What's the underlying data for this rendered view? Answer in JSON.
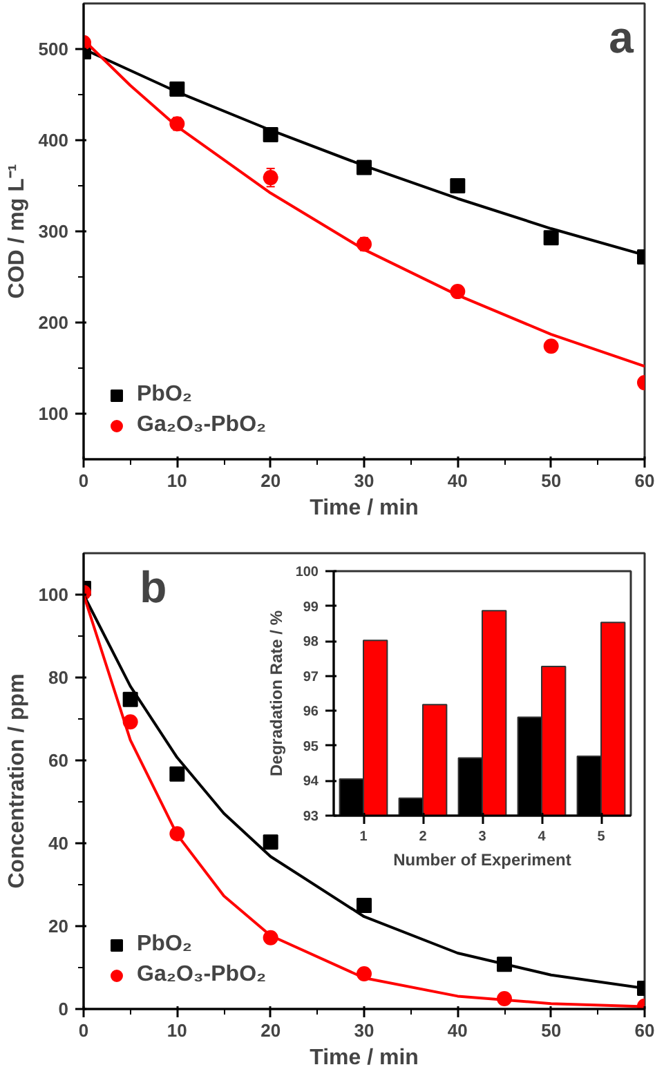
{
  "chart_data": [
    {
      "type": "scatter",
      "xlabel": "Time / min",
      "ylabel": "COD / mg L⁻¹",
      "annotations": [
        "a"
      ],
      "xlim": [
        0,
        60
      ],
      "xticks": [
        0,
        10,
        20,
        30,
        40,
        50,
        60
      ],
      "ylim": [
        50,
        550
      ],
      "yticks": [
        100,
        200,
        300,
        400,
        500
      ],
      "legend": "bottom left",
      "series": [
        {
          "name": "PbO₂",
          "color": "#000000",
          "marker": "square",
          "x": [
            0,
            10,
            20,
            30,
            40,
            50,
            60
          ],
          "values": [
            497,
            456,
            406,
            370,
            350,
            293,
            272
          ]
        },
        {
          "name": "Ga₂O₃-PbO₂",
          "color": "#ff0000",
          "marker": "circle",
          "x": [
            0,
            10,
            20,
            30,
            40,
            50,
            60
          ],
          "values": [
            507,
            418,
            359,
            286,
            234,
            174,
            134
          ],
          "errors": [
            6,
            7,
            10,
            7,
            5,
            6,
            4
          ]
        },
        {
          "type": "line",
          "color": "#000000",
          "x": [
            0,
            10,
            20,
            30,
            40,
            50,
            60
          ],
          "values": [
            500,
            453,
            411,
            372,
            336,
            303,
            274
          ]
        },
        {
          "type": "line",
          "color": "#ff0000",
          "x": [
            0,
            5,
            10,
            20,
            30,
            40,
            50,
            60
          ],
          "values": [
            510,
            460,
            415,
            342,
            280,
            230,
            187,
            152
          ]
        }
      ]
    },
    {
      "type": "scatter",
      "xlabel": "Time / min",
      "ylabel": "Concentration / ppm",
      "annotations": [
        "b"
      ],
      "xlim": [
        0,
        60
      ],
      "xticks": [
        0,
        10,
        20,
        30,
        40,
        50,
        60
      ],
      "ylim": [
        0,
        110
      ],
      "yticks": [
        0,
        20,
        40,
        60,
        80,
        100
      ],
      "legend": "bottom left",
      "series": [
        {
          "name": "PbO₂",
          "color": "#000000",
          "marker": "square",
          "x": [
            0,
            5,
            10,
            20,
            30,
            45,
            60
          ],
          "values": [
            101.5,
            74.7,
            56.7,
            40.3,
            25,
            10.8,
            5
          ]
        },
        {
          "name": "Ga₂O₃-PbO₂",
          "color": "#ff0000",
          "marker": "circle",
          "x": [
            0,
            5,
            10,
            20,
            30,
            45,
            60
          ],
          "values": [
            100.5,
            69.3,
            42.3,
            17.2,
            8.5,
            2.5,
            0.7
          ]
        },
        {
          "type": "line",
          "color": "#000000",
          "x": [
            0,
            5,
            10,
            15,
            20,
            30,
            40,
            50,
            60
          ],
          "values": [
            100,
            77.9,
            60.7,
            47.2,
            36.8,
            22.3,
            13.5,
            8.2,
            5
          ]
        },
        {
          "type": "line",
          "color": "#ff0000",
          "x": [
            0,
            5,
            10,
            15,
            20,
            30,
            40,
            50,
            60
          ],
          "values": [
            100,
            64.9,
            42.1,
            27.3,
            17.7,
            7.5,
            3.1,
            1.3,
            0.6
          ]
        }
      ]
    },
    {
      "type": "bar",
      "xlabel": "Number of Experiment",
      "ylabel": "Degradation Rate / %",
      "categories": [
        "1",
        "2",
        "3",
        "4",
        "5"
      ],
      "ylim": [
        93,
        100
      ],
      "yticks": [
        93,
        94,
        95,
        96,
        97,
        98,
        99,
        100
      ],
      "series": [
        {
          "color": "#000000",
          "values": [
            94.05,
            93.5,
            94.65,
            95.82,
            94.7
          ]
        },
        {
          "color": "#ff0000",
          "values": [
            98.02,
            96.18,
            98.87,
            97.27,
            98.53
          ]
        }
      ]
    }
  ]
}
